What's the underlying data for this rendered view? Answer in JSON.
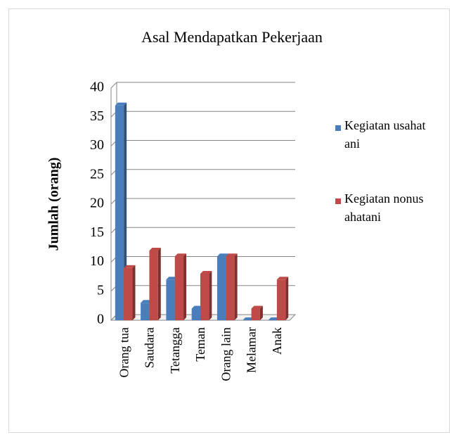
{
  "chart_data": {
    "type": "bar",
    "title": "Asal Mendapatkan Pekerjaan",
    "y_label": "Jumlah (orang)",
    "categories": [
      "Orang tua",
      "Saudara",
      "Tetangga",
      "Teman",
      "Orang lain",
      "Melamar",
      "Anak"
    ],
    "series": [
      {
        "name": "Kegiatan usahatani",
        "color": "#4a7ebb",
        "values": [
          37,
          3,
          7,
          2,
          11,
          0,
          0
        ]
      },
      {
        "name": "Kegiatan nonusahatani",
        "color": "#be4b48",
        "values": [
          9,
          12,
          11,
          8,
          11,
          2,
          7
        ]
      }
    ],
    "ylim": [
      0,
      40
    ],
    "yticks": [
      0,
      5,
      10,
      15,
      20,
      25,
      30,
      35,
      40
    ],
    "grid": true,
    "legend": "right"
  }
}
